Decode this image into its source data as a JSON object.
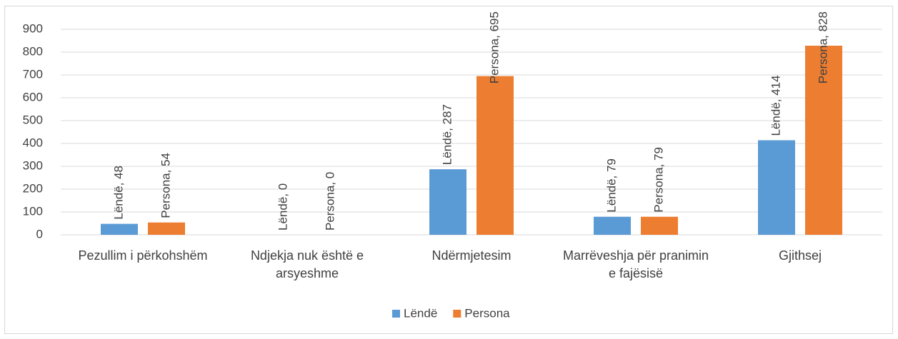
{
  "chart_data": {
    "type": "bar",
    "categories": [
      "Pezullim i përkohshëm",
      "Ndjekja nuk është e arsyeshme",
      "Ndërmjetesim",
      "Marrëveshja për pranimin e fajësisë",
      "Gjithsej"
    ],
    "series": [
      {
        "name": "Lëndë",
        "color": "#5b9bd5",
        "values": [
          48,
          0,
          287,
          79,
          414
        ],
        "value_labels": [
          "Lëndë, 48",
          "Lëndë, 0",
          "Lëndë, 287",
          "Lëndë, 79",
          "Lëndë, 414"
        ]
      },
      {
        "name": "Persona",
        "color": "#ed7d31",
        "values": [
          54,
          0,
          695,
          79,
          828
        ],
        "value_labels": [
          "Persona, 54",
          "Persona, 0",
          "Persona, 695",
          "Persona, 79",
          "Persona, 828"
        ]
      }
    ],
    "ylim": [
      0,
      900
    ],
    "yticks": [
      0,
      100,
      200,
      300,
      400,
      500,
      600,
      700,
      800,
      900
    ],
    "grid": true,
    "legend": "bottom"
  }
}
